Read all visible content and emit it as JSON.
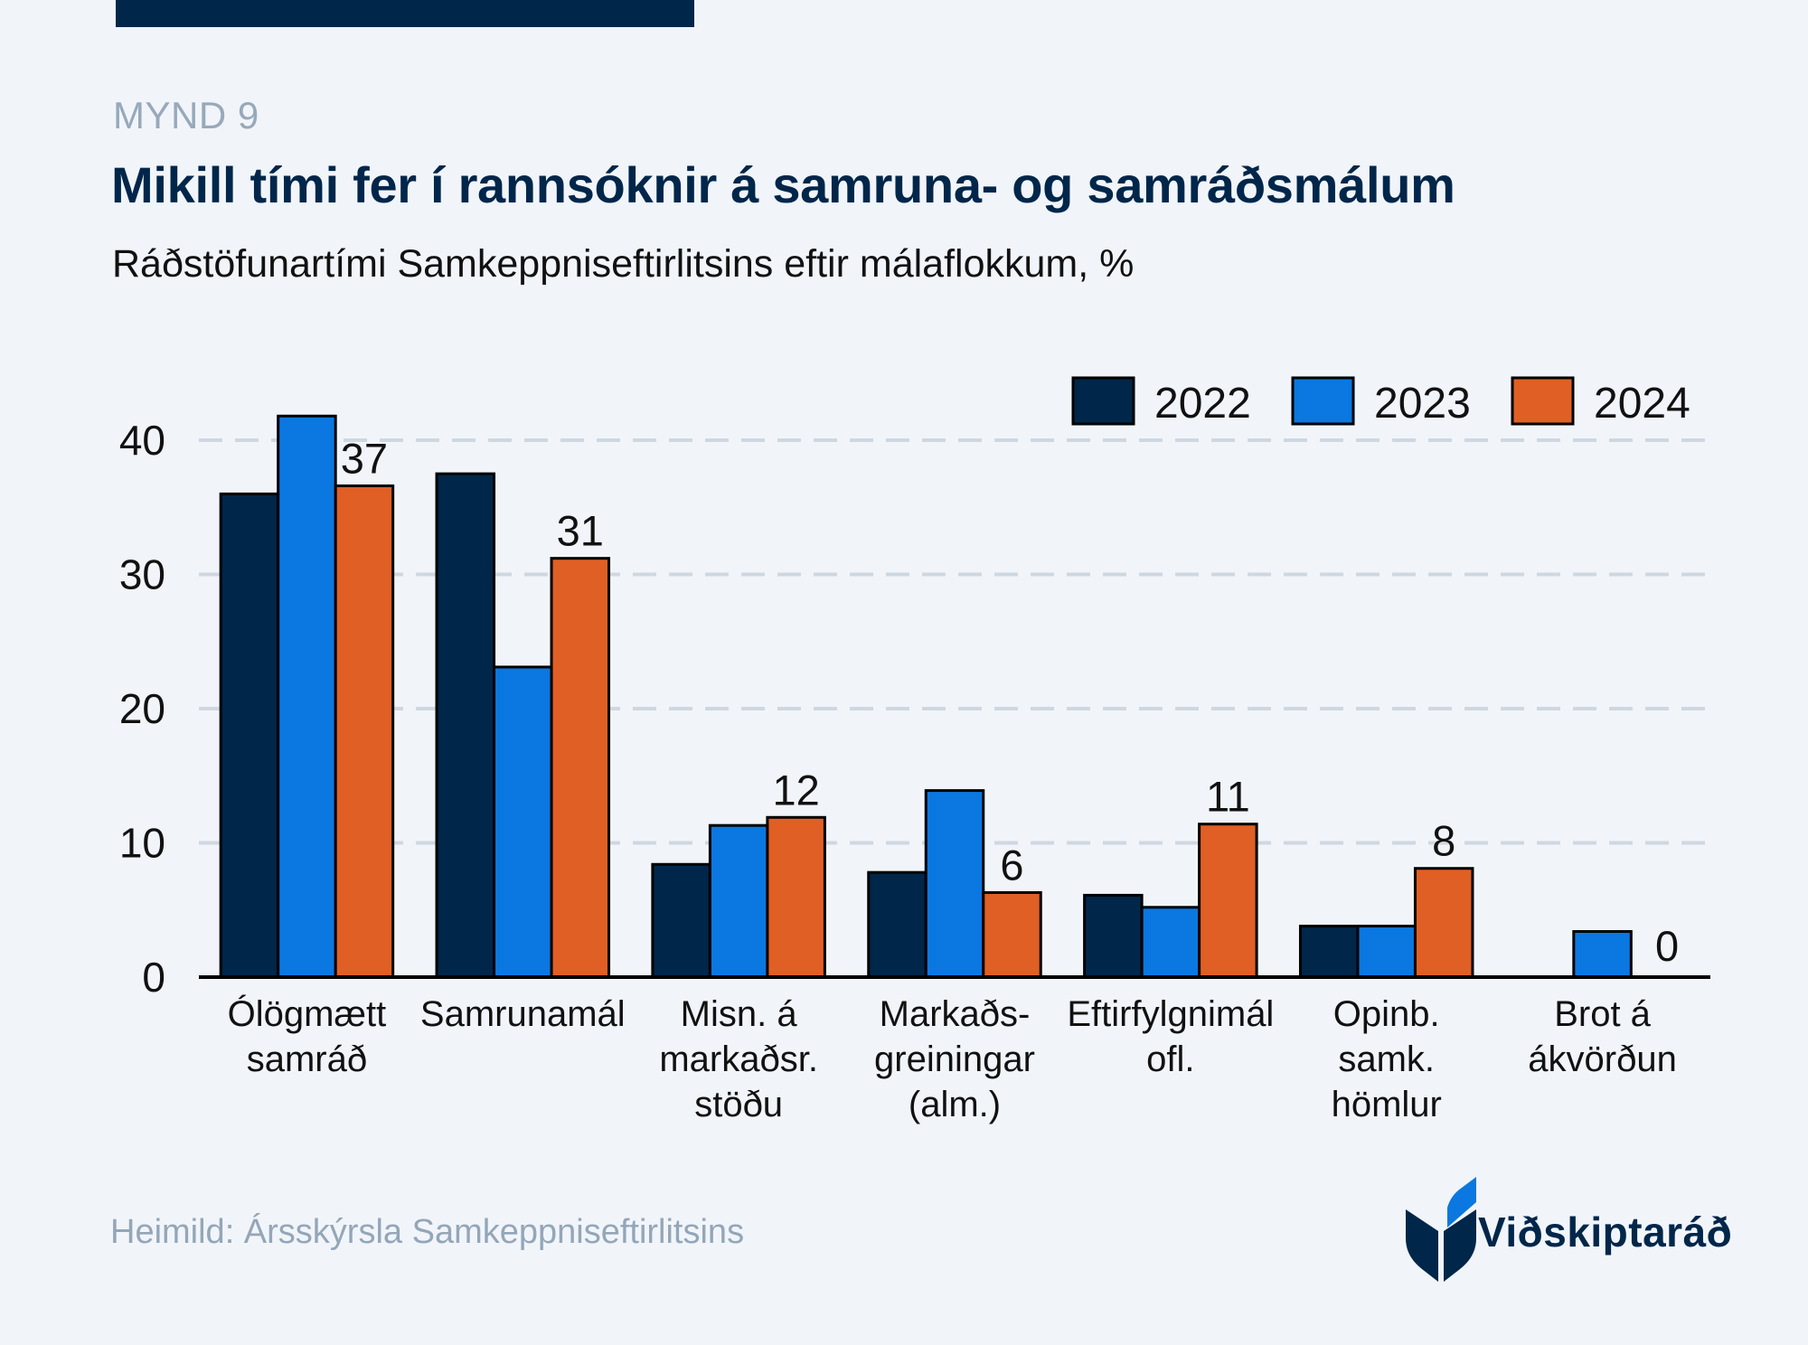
{
  "header": {
    "figure_label": "MYND 9",
    "title": "Mikill tími fer í rannsóknir á samruna- og samráðsmálum",
    "subtitle": "Ráðstöfunartími Samkeppniseftirlitsins eftir málaflokkum, %"
  },
  "footer": {
    "source": "Heimild: Ársskýrsla Samkeppniseftirlitsins",
    "logo_text": "Viðskiptaráð"
  },
  "colors": {
    "background": "#f1f5fa",
    "brand_navy": "#00264a",
    "brand_blue": "#0a78e0",
    "orange": "#e05f25",
    "grid": "#cfd8e1"
  },
  "chart_data": {
    "type": "bar",
    "title": "Mikill tími fer í rannsóknir á samruna- og samráðsmálum",
    "subtitle": "Ráðstöfunartími Samkeppniseftirlitsins eftir málaflokkum, %",
    "xlabel": "",
    "ylabel": "",
    "ylim": [
      0,
      42
    ],
    "yticks": [
      0,
      10,
      20,
      30,
      40
    ],
    "grid": true,
    "legend_position": "top-right",
    "categories": [
      [
        "Ólögmætt",
        "samráð"
      ],
      [
        "Samrunamál"
      ],
      [
        "Misn. á",
        "markaðsr.",
        "stöðu"
      ],
      [
        "Markaðs-",
        "greiningar",
        "(alm.)"
      ],
      [
        "Eftirfylgnimál",
        "ofl."
      ],
      [
        "Opinb.",
        "samk.",
        "hömlur"
      ],
      [
        "Brot á",
        "ákvörðun"
      ]
    ],
    "series": [
      {
        "name": "2022",
        "color": "#00264a",
        "values": [
          36.0,
          37.5,
          8.4,
          7.8,
          6.1,
          3.8,
          null
        ]
      },
      {
        "name": "2023",
        "color": "#0a78e0",
        "values": [
          41.8,
          23.1,
          11.3,
          13.9,
          5.2,
          3.8,
          3.4
        ]
      },
      {
        "name": "2024",
        "color": "#e05f25",
        "values": [
          36.6,
          31.2,
          11.9,
          6.3,
          11.4,
          8.1,
          0
        ]
      }
    ],
    "data_labels": {
      "series": "2024",
      "labels": [
        "37",
        "31",
        "12",
        "6",
        "11",
        "8",
        "0"
      ]
    }
  }
}
